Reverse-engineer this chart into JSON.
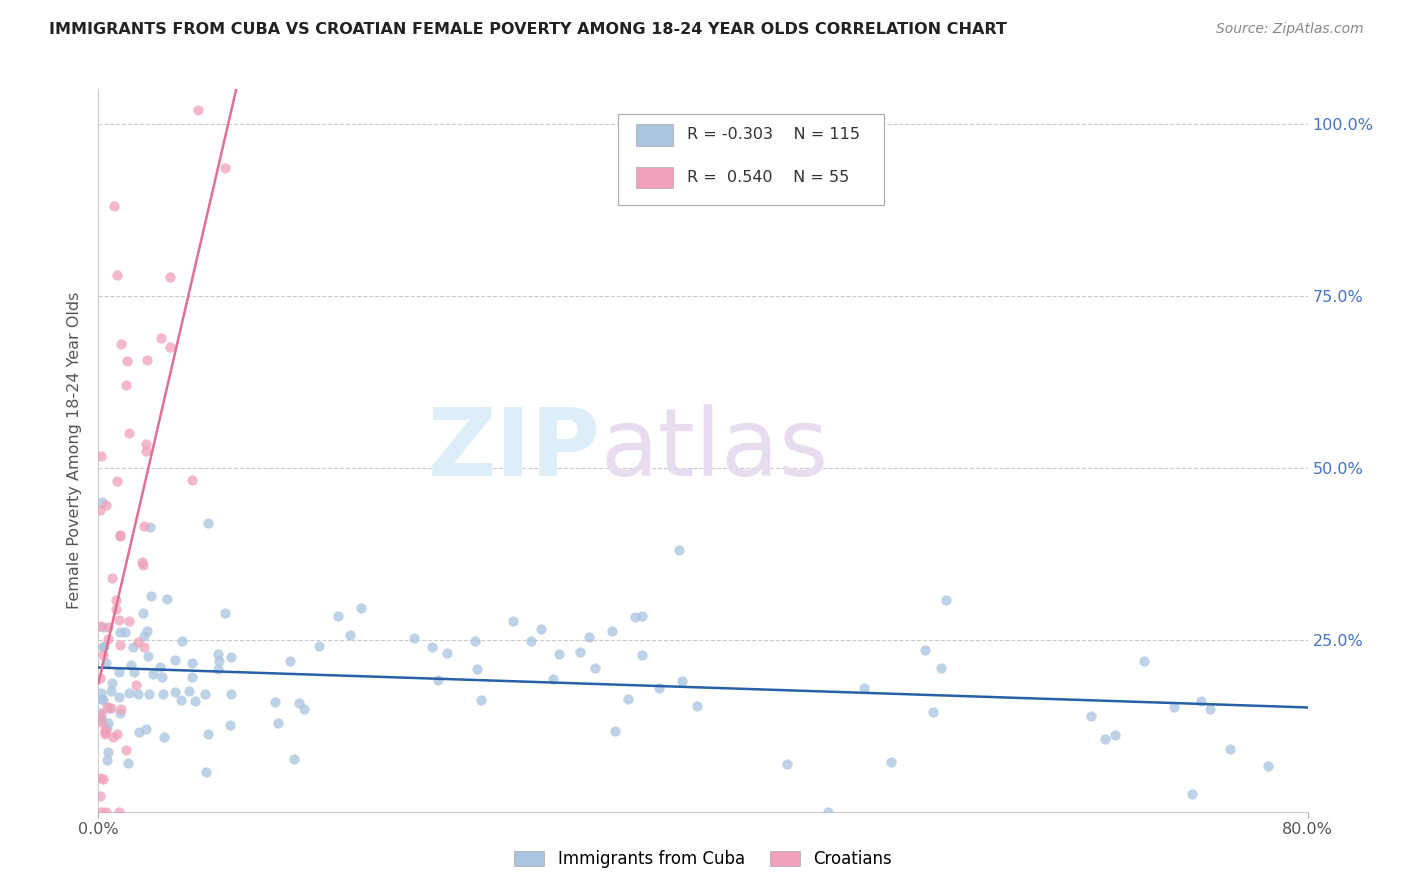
{
  "title": "IMMIGRANTS FROM CUBA VS CROATIAN FEMALE POVERTY AMONG 18-24 YEAR OLDS CORRELATION CHART",
  "source": "Source: ZipAtlas.com",
  "ylabel": "Female Poverty Among 18-24 Year Olds",
  "color_cuba": "#a8c4e0",
  "color_croatia": "#f0a0b8",
  "color_line_cuba": "#2860a8",
  "color_line_croatia": "#e07090",
  "background_color": "#ffffff",
  "xlim": [
    0.0,
    0.8
  ],
  "ylim": [
    0.0,
    1.05
  ],
  "legend_r1": "R = -0.303",
  "legend_n1": "N = 115",
  "legend_r2": "R =  0.540",
  "legend_n2": "N = 55",
  "label_cuba": "Immigrants from Cuba",
  "label_croatia": "Croatians",
  "seed_cuba": 17,
  "seed_croatia": 99
}
